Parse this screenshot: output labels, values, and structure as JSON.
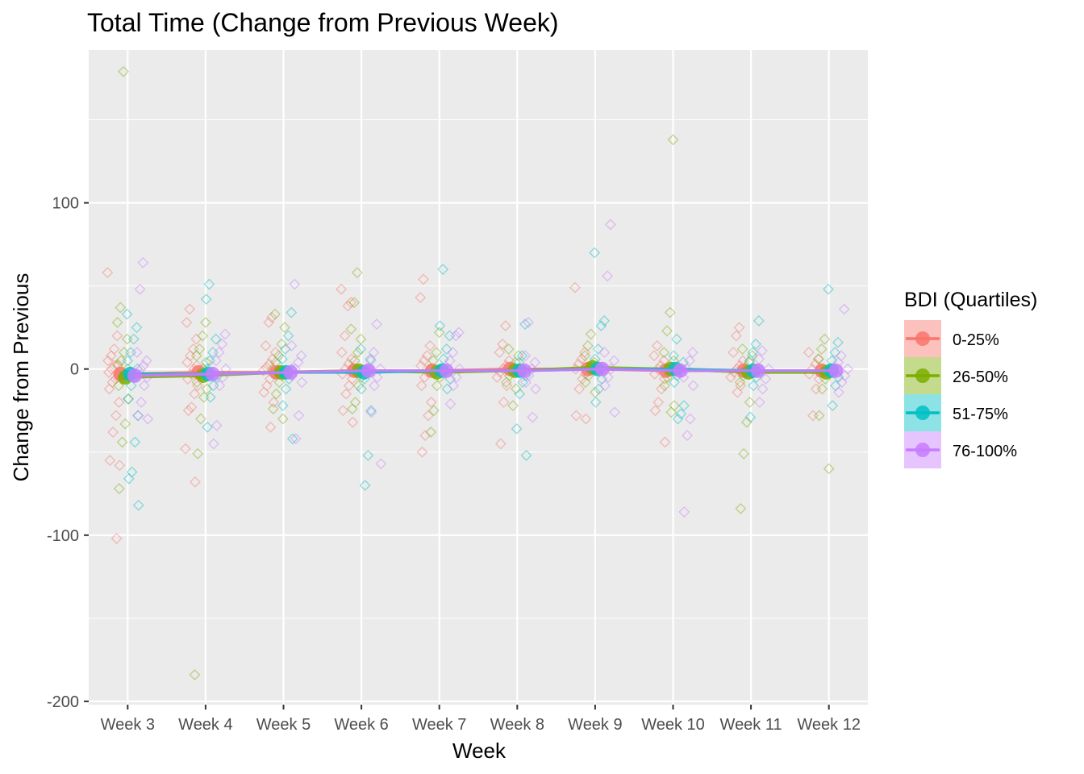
{
  "chart_data": {
    "type": "scatter",
    "title": "Total Time (Change from Previous Week)",
    "xlabel": "Week",
    "ylabel": "Change from Previous",
    "categories": [
      "Week 3",
      "Week 4",
      "Week 5",
      "Week 6",
      "Week 7",
      "Week 8",
      "Week 9",
      "Week 10",
      "Week 11",
      "Week 12"
    ],
    "ylim": [
      -202,
      192
    ],
    "yticks": [
      -200,
      -100,
      0,
      100
    ],
    "grid": true,
    "legend": {
      "title": "BDI (Quartiles)",
      "position": "right"
    },
    "series": [
      {
        "name": "0-25%",
        "color": "#F8766D",
        "means": [
          -3,
          -2,
          -2,
          -1,
          -1,
          0,
          0,
          -1,
          -1,
          -1
        ],
        "points": [
          [
            58,
            20,
            12,
            8,
            5,
            3,
            2,
            0,
            -2,
            -4,
            -6,
            -8,
            -12,
            -20,
            -28,
            -38,
            -55,
            -58,
            -102
          ],
          [
            36,
            28,
            18,
            12,
            8,
            4,
            2,
            0,
            -3,
            -6,
            -10,
            -15,
            -23,
            -25,
            -48,
            -68
          ],
          [
            31,
            28,
            14,
            10,
            6,
            3,
            1,
            -1,
            -3,
            -6,
            -10,
            -14,
            -20,
            -35
          ],
          [
            48,
            40,
            38,
            20,
            10,
            6,
            3,
            0,
            -3,
            -6,
            -10,
            -15,
            -25,
            -32
          ],
          [
            54,
            43,
            14,
            8,
            5,
            2,
            0,
            -2,
            -5,
            -10,
            -20,
            -28,
            -40,
            -50
          ],
          [
            26,
            15,
            10,
            5,
            2,
            0,
            -2,
            -5,
            -10,
            -20,
            -45
          ],
          [
            49,
            10,
            6,
            3,
            0,
            -3,
            -6,
            -12,
            -28,
            -30
          ],
          [
            14,
            8,
            5,
            2,
            0,
            -3,
            -6,
            -12,
            -20,
            -25,
            -44
          ],
          [
            25,
            20,
            10,
            5,
            2,
            0,
            -2,
            -5,
            -10,
            -14
          ],
          [
            10,
            6,
            3,
            0,
            -3,
            -6,
            -12,
            -28
          ]
        ]
      },
      {
        "name": "26-50%",
        "color": "#7CAE00",
        "means": [
          -5,
          -4,
          -2,
          -1,
          -2,
          -1,
          1,
          0,
          -2,
          -2
        ],
        "points": [
          [
            179,
            37,
            28,
            18,
            10,
            5,
            2,
            0,
            -3,
            -6,
            -10,
            -18,
            -33,
            -44,
            -72
          ],
          [
            28,
            20,
            12,
            8,
            4,
            0,
            -4,
            -8,
            -12,
            -17,
            -30,
            -51,
            -184
          ],
          [
            33,
            25,
            15,
            8,
            4,
            0,
            -4,
            -8,
            -15,
            -24,
            -30
          ],
          [
            58,
            40,
            24,
            18,
            10,
            5,
            0,
            -5,
            -10,
            -20,
            -24
          ],
          [
            22,
            10,
            5,
            0,
            -5,
            -10,
            -25,
            -38
          ],
          [
            12,
            8,
            4,
            0,
            -4,
            -8,
            -12,
            -22
          ],
          [
            21,
            14,
            8,
            4,
            0,
            -4,
            -8,
            -14
          ],
          [
            138,
            34,
            23,
            10,
            5,
            0,
            -5,
            -10,
            -22,
            -26
          ],
          [
            12,
            8,
            4,
            0,
            -4,
            -8,
            -20,
            -32,
            -51,
            -84
          ],
          [
            18,
            12,
            6,
            0,
            -6,
            -12,
            -28,
            -60
          ]
        ]
      },
      {
        "name": "51-75%",
        "color": "#00BFC4",
        "means": [
          -3,
          -3,
          -2,
          -2,
          -1,
          -1,
          0,
          0,
          -1,
          -1
        ],
        "points": [
          [
            33,
            25,
            18,
            10,
            5,
            0,
            -5,
            -10,
            -18,
            -28,
            -44,
            -62,
            -66,
            -82
          ],
          [
            51,
            42,
            18,
            10,
            5,
            0,
            -5,
            -10,
            -17,
            -35
          ],
          [
            34,
            20,
            12,
            6,
            0,
            -6,
            -12,
            -22,
            -42
          ],
          [
            12,
            6,
            0,
            -6,
            -12,
            -25,
            -52,
            -70
          ],
          [
            60,
            26,
            20,
            12,
            6,
            0,
            -6,
            -12
          ],
          [
            27,
            8,
            4,
            0,
            -4,
            -8,
            -15,
            -36,
            -52
          ],
          [
            70,
            29,
            26,
            12,
            6,
            0,
            -6,
            -12,
            -20
          ],
          [
            18,
            8,
            4,
            0,
            -4,
            -8,
            -22,
            -27,
            -30
          ],
          [
            29,
            15,
            10,
            5,
            0,
            -5,
            -10,
            -29
          ],
          [
            48,
            16,
            10,
            5,
            0,
            -5,
            -10,
            -22
          ]
        ]
      },
      {
        "name": "76-100%",
        "color": "#C77CFF",
        "means": [
          -4,
          -3,
          -2,
          -1,
          -1,
          -1,
          0,
          -1,
          -1,
          -1
        ],
        "points": [
          [
            64,
            48,
            10,
            5,
            2,
            0,
            -2,
            -5,
            -10,
            -20,
            -28,
            -30
          ],
          [
            21,
            15,
            10,
            5,
            0,
            -5,
            -10,
            -34,
            -45
          ],
          [
            51,
            14,
            8,
            4,
            0,
            -4,
            -8,
            -28,
            -42
          ],
          [
            27,
            10,
            5,
            0,
            -5,
            -10,
            -26,
            -57
          ],
          [
            22,
            20,
            10,
            5,
            0,
            -5,
            -10,
            -21
          ],
          [
            28,
            8,
            4,
            0,
            -4,
            -8,
            -12,
            -29
          ],
          [
            87,
            56,
            10,
            5,
            0,
            -5,
            -10,
            -26
          ],
          [
            10,
            5,
            0,
            -5,
            -10,
            -30,
            -40,
            -86
          ],
          [
            11,
            6,
            0,
            -6,
            -12,
            -20
          ],
          [
            36,
            8,
            4,
            0,
            -4,
            -8,
            -14
          ]
        ]
      }
    ]
  }
}
